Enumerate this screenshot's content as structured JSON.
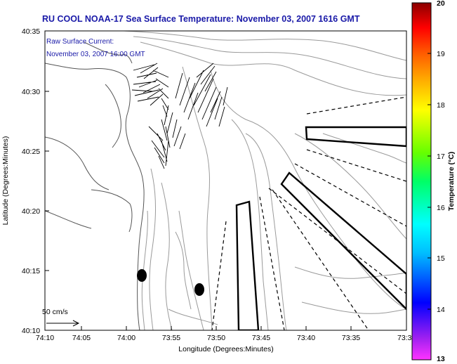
{
  "title": "RU COOL  NOAA-17  Sea Surface Temperature:  November 03, 2007 1616 GMT",
  "annotation": {
    "line1": "Raw Surface Current:",
    "line2": "November 03, 2007 16:00 GMT"
  },
  "scale_label": "50 cm/s",
  "axes": {
    "xlabel": "Longitude (Degrees:Minutes)",
    "ylabel": "Latitude (Degrees:Minutes)",
    "xticks": [
      "74:10",
      "74:05",
      "74:00",
      "73:55",
      "73:50",
      "73:45",
      "73:40",
      "73:35",
      "73:3"
    ],
    "yticks": [
      "40:35",
      "40:30",
      "40:25",
      "40:20",
      "40:15",
      "40:10"
    ]
  },
  "colorbar": {
    "label": "Temperature (°C)",
    "ticks": [
      "20",
      "19",
      "18",
      "17",
      "16",
      "15",
      "14",
      "13"
    ],
    "min": 13,
    "max": 20
  },
  "colors": {
    "title": "#1a1aa8",
    "contour": "#9a9a9a",
    "coast": "#555555"
  }
}
